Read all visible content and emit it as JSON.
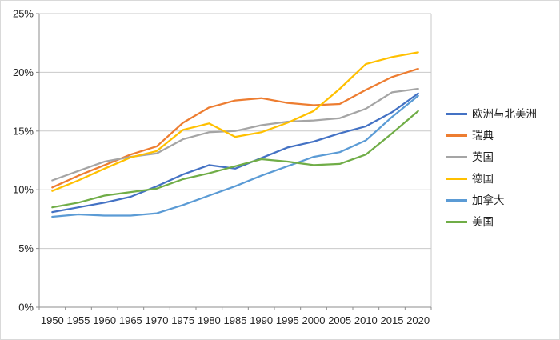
{
  "chart_data": {
    "type": "line",
    "title": "",
    "categories": [
      "1950",
      "1955",
      "1960",
      "1965",
      "1970",
      "1975",
      "1980",
      "1985",
      "1990",
      "1995",
      "2000",
      "2005",
      "2010",
      "2015",
      "2020"
    ],
    "y_axis": {
      "min": 0,
      "max": 25,
      "step": 5,
      "tick_labels": [
        "0%",
        "5%",
        "10%",
        "15%",
        "20%",
        "25%"
      ],
      "format": "percent"
    },
    "grid": true,
    "legend_position": "right",
    "series": [
      {
        "id": "europe-north-america",
        "name": "欧洲与北美洲",
        "color": "#4472C4",
        "values": [
          8.1,
          8.5,
          8.9,
          9.4,
          10.3,
          11.3,
          12.1,
          11.8,
          12.7,
          13.6,
          14.1,
          14.8,
          15.4,
          16.6,
          18.2
        ]
      },
      {
        "id": "sweden",
        "name": "瑞典",
        "color": "#ED7D31",
        "values": [
          10.2,
          11.2,
          12.1,
          13.0,
          13.7,
          15.7,
          17.0,
          17.6,
          17.8,
          17.4,
          17.2,
          17.3,
          18.5,
          19.6,
          20.3
        ]
      },
      {
        "id": "uk",
        "name": "英国",
        "color": "#A5A5A5",
        "values": [
          10.8,
          11.6,
          12.4,
          12.8,
          13.1,
          14.3,
          14.9,
          15.0,
          15.5,
          15.8,
          15.9,
          16.1,
          16.9,
          18.3,
          18.6
        ]
      },
      {
        "id": "germany",
        "name": "德国",
        "color": "#FFC000",
        "values": [
          9.9,
          10.8,
          11.8,
          12.75,
          13.3,
          15.1,
          15.65,
          14.5,
          14.9,
          15.7,
          16.7,
          18.6,
          20.7,
          21.3,
          21.7
        ]
      },
      {
        "id": "canada",
        "name": "加拿大",
        "color": "#5B9BD5",
        "values": [
          7.7,
          7.9,
          7.8,
          7.8,
          8.0,
          8.7,
          9.5,
          10.3,
          11.2,
          12.0,
          12.8,
          13.2,
          14.2,
          16.2,
          18.0
        ]
      },
      {
        "id": "usa",
        "name": "美国",
        "color": "#70AD47",
        "values": [
          8.5,
          8.9,
          9.5,
          9.8,
          10.1,
          10.9,
          11.4,
          12.0,
          12.6,
          12.4,
          12.1,
          12.2,
          13.0,
          14.8,
          16.7
        ]
      }
    ]
  },
  "colors": {
    "background": "#FFFFFF",
    "chart_border": "#D9D9D9",
    "gridline": "#C9C9C9",
    "axis": "#8E8E8E",
    "tick_text": "#262626"
  }
}
